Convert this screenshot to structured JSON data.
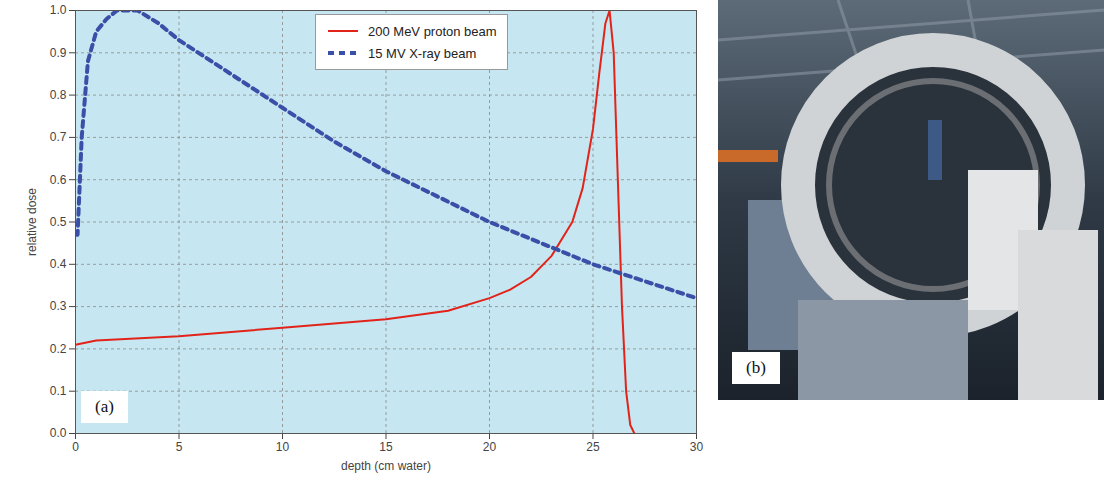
{
  "chart_data": {
    "type": "line",
    "xlabel": "depth (cm water)",
    "ylabel": "relative dose",
    "annotation": "(a)",
    "xlim": [
      0,
      30
    ],
    "xticks": [
      0,
      5,
      10,
      15,
      20,
      25,
      30
    ],
    "ylim": [
      0,
      1
    ],
    "yticks": [
      {
        "value": 0,
        "label": "0.0"
      },
      0.1,
      0.2,
      0.3,
      0.4,
      0.5,
      0.6,
      0.7,
      0.8,
      0.9,
      {
        "value": 1,
        "label": "1.0"
      }
    ],
    "grid": true,
    "legend": "top",
    "series": [
      {
        "name": "200 MeV  proton beam",
        "color": "#e2231a",
        "line_style": "solid",
        "x": [
          0,
          1,
          5,
          10,
          15,
          18,
          20,
          21,
          22,
          23,
          24,
          24.5,
          25,
          25.3,
          25.6,
          25.8,
          26.0,
          26.2,
          26.4,
          26.6,
          26.8,
          27
        ],
        "values": [
          0.21,
          0.22,
          0.23,
          0.25,
          0.27,
          0.29,
          0.32,
          0.34,
          0.37,
          0.42,
          0.5,
          0.58,
          0.72,
          0.85,
          0.97,
          1.0,
          0.9,
          0.6,
          0.3,
          0.1,
          0.02,
          0.0
        ]
      },
      {
        "name": "15 MV  X-ray beam",
        "color": "#3a4fa8",
        "line_style": "dashed",
        "x": [
          0,
          0.1,
          0.3,
          0.6,
          1,
          1.5,
          2,
          3,
          4,
          5,
          7.5,
          10,
          12.5,
          15,
          17.5,
          20,
          22.5,
          25,
          27.5,
          30
        ],
        "values": [
          0.47,
          0.47,
          0.7,
          0.88,
          0.95,
          0.98,
          1.0,
          1.0,
          0.97,
          0.93,
          0.85,
          0.77,
          0.69,
          0.62,
          0.56,
          0.5,
          0.45,
          0.4,
          0.36,
          0.32
        ]
      }
    ]
  },
  "photo": {
    "label": "(b)"
  }
}
